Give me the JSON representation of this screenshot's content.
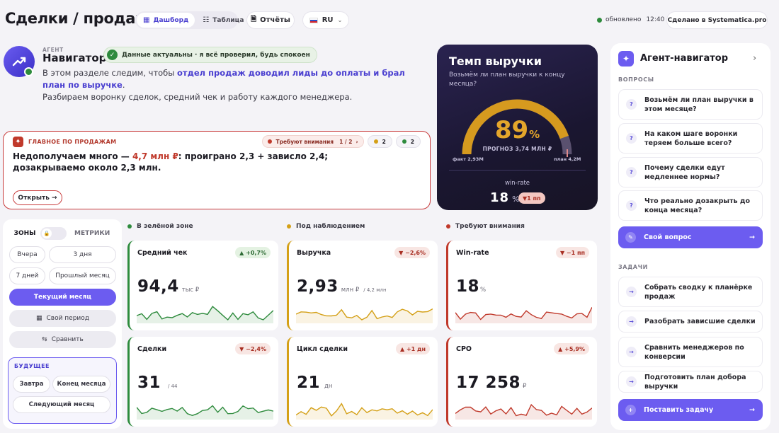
{
  "header": {
    "title": "Сделки / продажи",
    "tabs": [
      {
        "label": "Дашборд",
        "icon": "grid-icon",
        "active": true
      },
      {
        "label": "Таблица",
        "icon": "table-icon",
        "active": false
      }
    ],
    "reports_label": "Отчёты",
    "lang_label": "RU",
    "status": {
      "label": "обновлено",
      "time": "12:40"
    },
    "made_in": "Сделано в Systematica.pro"
  },
  "agent": {
    "role": "АГЕНТ",
    "name": "Навигатор",
    "status": "Данные актуальны · я всё проверил, будь спокоен",
    "intro_1": "В этом разделе следим, чтобы ",
    "intro_strong": "отдел продаж доводил лиды до оплаты и брал план по выручке",
    "intro_2": ".",
    "intro_3": "Разбираем воронку сделок, средний чек и работу каждого менеджера."
  },
  "alert": {
    "header": "ГЛАВНОЕ ПО ПРОДАЖАМ",
    "attention_label": "Требуют внимания",
    "attention_count": "1 / 2",
    "amber_count": "2",
    "green_count": "2",
    "text_1": "Недополучаем много — ",
    "text_red": "4,7 млн ₽",
    "text_2": ": проиграно 2,3 + зависло 2,4;",
    "text_3": "дозакрываемо около 2,3 млн.",
    "open_label": "Открыть →"
  },
  "speed": {
    "title": "Темп выручки",
    "question": "Возьмём ли план выручки к концу месяца?",
    "percent": "89",
    "percent_sign": "%",
    "progress": 0.89,
    "forecast": "ПРОГНОЗ 3,74 МЛН ₽",
    "fact": "факт 2,93М",
    "plan": "план 4,2М",
    "winrate_label": "win-rate",
    "winrate_value": "18",
    "winrate_unit": "%",
    "winrate_badge": "▼1 пп"
  },
  "zones": {
    "tab_zones": "ЗОНЫ",
    "tab_metrics": "МЕТРИКИ",
    "buttons": [
      "Вчера",
      "3 дня",
      "7 дней",
      "Прошлый месяц"
    ],
    "current": "Текущий месяц",
    "custom": "Свой период",
    "compare": "Сравнить",
    "future_title": "БУДУЩЕЕ",
    "future": [
      "Завтра",
      "Конец месяца",
      "Следующий месяц"
    ]
  },
  "sections": {
    "green": "В зелёной зоне",
    "amber": "Под наблюдением",
    "red": "Требуют внимания"
  },
  "metrics": [
    {
      "label": "Средний чек",
      "badge": "▲ +0,7%",
      "value": "94,4",
      "unit": "тыс ₽",
      "sub": "",
      "color": "#2e8b3d"
    },
    {
      "label": "Выручка",
      "badge": "▼ −2,6%",
      "value": "2,93",
      "unit": "млн ₽",
      "sub": "/ 4,2 млн",
      "color": "#d4a017"
    },
    {
      "label": "Win-rate",
      "badge": "▼ −1 пп",
      "value": "18",
      "unit": "%",
      "sub": "",
      "color": "#c0392b"
    },
    {
      "label": "Сделки",
      "badge": "▼ −2,4%",
      "value": "31",
      "unit": "",
      "sub": "/ 44",
      "color": "#2e8b3d"
    },
    {
      "label": "Цикл сделки",
      "badge": "▲ +1 дн",
      "value": "21",
      "unit": "дн",
      "sub": "",
      "color": "#d4a017"
    },
    {
      "label": "CPO",
      "badge": "▲ +5,9%",
      "value": "17 258",
      "unit": "₽",
      "sub": "",
      "color": "#c0392b"
    }
  ],
  "right": {
    "title": "Агент-навигатор",
    "questions_title": "ВОПРОСЫ",
    "questions": [
      "Возьмём ли план выручки в этом месяце?",
      "На каком шаге воронки теряем больше всего?",
      "Почему сделки едут медленнее нормы?",
      "Что реально дозакрыть до конца месяца?"
    ],
    "own_question": "Свой вопрос",
    "tasks_title": "ЗАДАЧИ",
    "tasks": [
      "Собрать сводку к планёрке продаж",
      "Разобрать зависшие сделки",
      "Сравнить менеджеров по конверсии",
      "Подготовить план добора выручки"
    ],
    "set_task": "Поставить задачу"
  }
}
